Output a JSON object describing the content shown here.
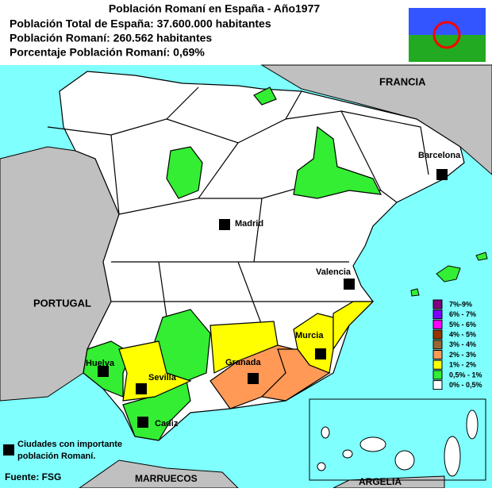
{
  "header": {
    "title": "Población Romaní en España - Año1977",
    "lines": [
      "Población Total de España: 37.600.000 habitantes",
      "Población Romaní: 260.562 habitantes",
      "Porcentaje Población Romaní: 0,69%"
    ]
  },
  "countries": [
    "FRANCIA",
    "PORTUGAL",
    "MARRUECOS",
    "ARGELIA"
  ],
  "cities": [
    "Barcelona",
    "Madrid",
    "Valencia",
    "Murcia",
    "Granada",
    "Huelva",
    "Sevilla",
    "Cadiz"
  ],
  "legend": {
    "items": [
      {
        "label": "7%-9%",
        "color": "#800080"
      },
      {
        "label": "6% - 7%",
        "color": "#8000ff"
      },
      {
        "label": "5% - 6%",
        "color": "#ff00ff"
      },
      {
        "label": "4% - 5%",
        "color": "#993300"
      },
      {
        "label": "3% - 4%",
        "color": "#996633"
      },
      {
        "label": "2% - 3%",
        "color": "#ff9955"
      },
      {
        "label": "1% - 2%",
        "color": "#ffff00"
      },
      {
        "label": "0,5% - 1%",
        "color": "#33ee33"
      },
      {
        "label": "0% - 0,5%",
        "color": "#ffffff"
      }
    ]
  },
  "note": [
    "Ciudades con importante",
    "población Romaní."
  ],
  "source": "Fuente: FSG"
}
